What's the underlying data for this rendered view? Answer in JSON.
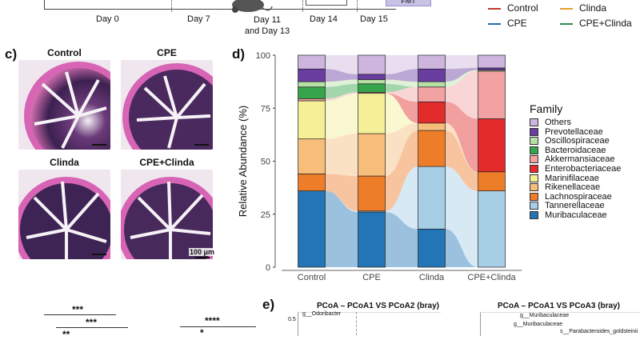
{
  "timeline": {
    "days": [
      "Day 0",
      "Day 7",
      "Day 11\nand Day 13",
      "Day 14",
      "Day 15"
    ],
    "box_label": "FMT"
  },
  "top_legend": [
    {
      "label": "Control",
      "color": "#c0392b"
    },
    {
      "label": "Clinda",
      "color": "#e59d2f"
    },
    {
      "label": "CPE",
      "color": "#1f6fb2"
    },
    {
      "label": "CPE+Clinda",
      "color": "#2e8b57"
    }
  ],
  "panel_c": {
    "letter": "c)",
    "images": [
      {
        "title": "Control"
      },
      {
        "title": "CPE"
      },
      {
        "title": "Clinda"
      },
      {
        "title": "CPE+Clinda"
      }
    ],
    "scale_bar": "100 μm"
  },
  "panel_d": {
    "letter": "d)",
    "legend_title": "Family"
  },
  "chart_data": {
    "type": "bar",
    "stacked": true,
    "title": "",
    "xlabel": "",
    "ylabel": "Relative Abundance (%)",
    "ylim": [
      0,
      100
    ],
    "yticks": [
      0,
      25,
      50,
      75,
      100
    ],
    "categories": [
      "Control",
      "CPE",
      "Clinda",
      "CPE+Clinda"
    ],
    "series": [
      {
        "name": "Muribaculaceae",
        "color": "#2475b5",
        "values": [
          36,
          26,
          18,
          0
        ]
      },
      {
        "name": "Tannerellaceae",
        "color": "#a6cfe6",
        "values": [
          0,
          0.5,
          29.5,
          36
        ]
      },
      {
        "name": "Lachnospiraceae",
        "color": "#ee7d2a",
        "values": [
          8,
          16.5,
          17,
          9
        ]
      },
      {
        "name": "Rikenellaceae",
        "color": "#f7bd7b",
        "values": [
          16.5,
          20,
          3.5,
          0
        ]
      },
      {
        "name": "Marinifilaceae",
        "color": "#f5ef97",
        "values": [
          18,
          19,
          0,
          0
        ]
      },
      {
        "name": "Enterobacteriaceae",
        "color": "#e22b2b",
        "values": [
          0,
          0,
          10,
          25
        ]
      },
      {
        "name": "Akkermansiaceae",
        "color": "#f2a2a2",
        "values": [
          1,
          0.5,
          7,
          22.5
        ]
      },
      {
        "name": "Bacteroidaceae",
        "color": "#36a54b",
        "values": [
          5.5,
          4,
          0,
          0
        ]
      },
      {
        "name": "Oscillospiraceae",
        "color": "#b7e0a5",
        "values": [
          2.5,
          2,
          2.5,
          0.5
        ]
      },
      {
        "name": "Prevotellaceae",
        "color": "#6a3da0",
        "values": [
          6,
          2.5,
          6,
          1
        ]
      },
      {
        "name": "Others",
        "color": "#cdb5de",
        "values": [
          6.5,
          9,
          6.5,
          6
        ]
      }
    ]
  },
  "legend_order": [
    "Others",
    "Prevotellaceae",
    "Oscillospiraceae",
    "Bacteroidaceae",
    "Akkermansiaceae",
    "Enterobacteriaceae",
    "Marinifilaceae",
    "Rikenellaceae",
    "Lachnospiraceae",
    "Tannerellaceae",
    "Muribaculaceae"
  ],
  "bottom": {
    "sig_left": [
      "***",
      "***",
      "**"
    ],
    "sig_right": [
      "****",
      "*"
    ],
    "panel_e_letter": "e)",
    "pcoa1_title": "PCoA – PCoA1 VS PCoA2 (bray)",
    "pcoa1_tick": "0.5",
    "pcoa1_label": "g__Odoribacter",
    "pcoa2_title": "PCoA – PCoA1 VS PCoA3 (bray)",
    "pcoa2_labels": [
      "g__Muribaculaceae",
      "g__Muribaculaceae",
      "s__Parabacteroides_goldsteinii"
    ]
  }
}
